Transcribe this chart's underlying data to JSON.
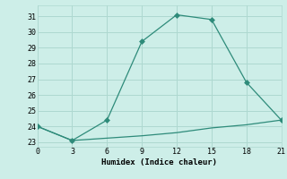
{
  "x_main": [
    0,
    3,
    6,
    9,
    12,
    15,
    18,
    21
  ],
  "y_main": [
    24.0,
    23.1,
    24.4,
    29.4,
    31.1,
    30.8,
    26.8,
    24.4
  ],
  "x_flat": [
    0,
    3,
    6,
    9,
    12,
    15,
    18,
    21
  ],
  "y_flat": [
    24.0,
    23.1,
    23.25,
    23.4,
    23.6,
    23.9,
    24.1,
    24.4
  ],
  "line_color": "#2e8b7a",
  "bg_color": "#cdeee8",
  "grid_color": "#aed8d0",
  "xlabel": "Humidex (Indice chaleur)",
  "xlim": [
    0,
    21
  ],
  "ylim": [
    22.7,
    31.7
  ],
  "xticks": [
    0,
    3,
    6,
    9,
    12,
    15,
    18,
    21
  ],
  "yticks": [
    23,
    24,
    25,
    26,
    27,
    28,
    29,
    30,
    31
  ],
  "marker_size": 3,
  "font_family": "monospace",
  "tick_fontsize": 6,
  "xlabel_fontsize": 6.5
}
